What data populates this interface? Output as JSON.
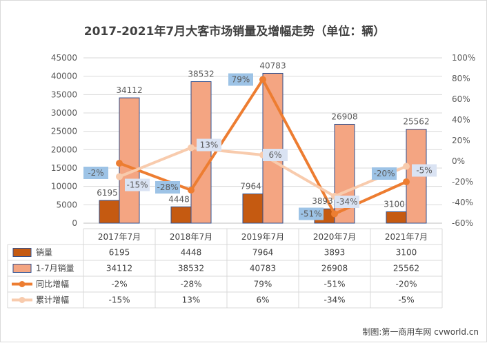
{
  "chart_data": {
    "type": "bar",
    "title": "2017-2021年7月大客市场销量及增幅走势（单位：辆）",
    "categories": [
      "2017年7月",
      "2018年7月",
      "2019年7月",
      "2020年7月",
      "2021年7月"
    ],
    "y_left_ticks": [
      "0",
      "5000",
      "10000",
      "15000",
      "20000",
      "25000",
      "30000",
      "35000",
      "40000",
      "45000"
    ],
    "y_right_ticks": [
      "-60%",
      "-40%",
      "-20%",
      "0%",
      "20%",
      "40%",
      "60%",
      "80%",
      "100%"
    ],
    "ylim_left": [
      0,
      45000
    ],
    "ylim_right": [
      -60,
      100
    ],
    "grid": true,
    "legend": "table-below",
    "series": [
      {
        "name": "销量",
        "kind": "bar",
        "axis": "left",
        "color": "#c55a11",
        "values": [
          6195,
          4448,
          7964,
          3893,
          3100
        ],
        "labels": [
          "6195",
          "4448",
          "7964",
          "3893",
          "3100"
        ]
      },
      {
        "name": "1-7月销量",
        "kind": "bar",
        "axis": "left",
        "color": "#f4a582",
        "values": [
          34112,
          38532,
          40783,
          26908,
          25562
        ],
        "labels": [
          "34112",
          "38532",
          "40783",
          "26908",
          "25562"
        ]
      },
      {
        "name": "同比增幅",
        "kind": "line",
        "axis": "right",
        "color": "#ed7d31",
        "values": [
          -2,
          -28,
          79,
          -51,
          -20
        ],
        "labels": [
          "-2%",
          "-28%",
          "79%",
          "-51%",
          "-20%"
        ]
      },
      {
        "name": "累计增幅",
        "kind": "line",
        "axis": "right",
        "color": "#f8cbad",
        "values": [
          -15,
          13,
          6,
          -34,
          -5
        ],
        "labels": [
          "-15%",
          "13%",
          "6%",
          "-34%",
          "-5%"
        ]
      }
    ]
  },
  "credit": "制图:第一商用车网 cvworld.cn"
}
